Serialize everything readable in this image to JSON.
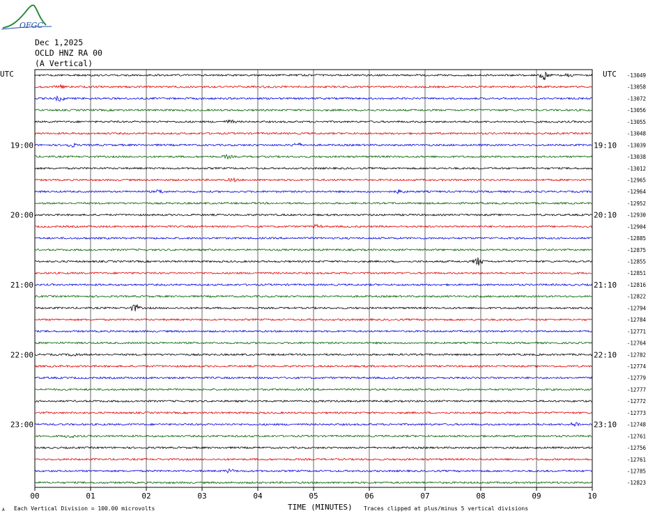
{
  "logo": {
    "text": "OFGC"
  },
  "header": {
    "date": "Dec 1,2025",
    "station": "OCLD HNZ RA 00",
    "component": "(A Vertical)"
  },
  "utc_left": "UTC",
  "utc_right": "UTC",
  "footer": {
    "mark": "A",
    "scale_note": "Each Vertical Division = 100.00 microvolts",
    "clip_note": "Traces clipped at plus/minus 5 vertical divisions"
  },
  "colors": {
    "trace_cycle": [
      "#000000",
      "#e00000",
      "#0000e0",
      "#006000"
    ],
    "grid": "#000000"
  },
  "chart_data": {
    "type": "line",
    "title": "",
    "xlabel": "TIME (MINUTES)",
    "ylabel": "",
    "xlim": [
      0,
      10
    ],
    "x_ticks": [
      "00",
      "01",
      "02",
      "03",
      "04",
      "05",
      "06",
      "07",
      "08",
      "09",
      "10"
    ],
    "traces_per_hour": 6,
    "left_hour_labels": [
      {
        "row": 6,
        "label": "19:00"
      },
      {
        "row": 12,
        "label": "20:00"
      },
      {
        "row": 18,
        "label": "21:00"
      },
      {
        "row": 24,
        "label": "22:00"
      },
      {
        "row": 30,
        "label": "23:00"
      }
    ],
    "right_hour_labels": [
      {
        "row": 6,
        "label": "19:10"
      },
      {
        "row": 12,
        "label": "20:10"
      },
      {
        "row": 18,
        "label": "21:10"
      },
      {
        "row": 24,
        "label": "22:10"
      },
      {
        "row": 30,
        "label": "23:10"
      }
    ],
    "first_offset_label": "-13049",
    "series": [
      {
        "offset": -13049,
        "events": [
          [
            9.15,
            3.0
          ],
          [
            9.55,
            1.2
          ]
        ]
      },
      {
        "offset": -13058,
        "events": [
          [
            0.45,
            1.0
          ]
        ]
      },
      {
        "offset": -13072,
        "events": [
          [
            0.45,
            1.5
          ]
        ]
      },
      {
        "offset": -13056,
        "events": []
      },
      {
        "offset": -13055,
        "events": [
          [
            3.5,
            1.0
          ]
        ]
      },
      {
        "offset": -13048,
        "events": []
      },
      {
        "offset": -13039,
        "events": [
          [
            0.65,
            1.3
          ],
          [
            4.7,
            1.3
          ]
        ]
      },
      {
        "offset": -13038,
        "events": [
          [
            3.45,
            1.0
          ]
        ]
      },
      {
        "offset": -13012,
        "events": []
      },
      {
        "offset": -12965,
        "events": [
          [
            3.55,
            1.0
          ]
        ]
      },
      {
        "offset": -12964,
        "events": [
          [
            2.25,
            1.0
          ],
          [
            6.55,
            1.0
          ]
        ]
      },
      {
        "offset": -12952,
        "events": []
      },
      {
        "offset": -12930,
        "events": []
      },
      {
        "offset": -12904,
        "events": [
          [
            5.05,
            1.0
          ]
        ]
      },
      {
        "offset": -12885,
        "events": []
      },
      {
        "offset": -12875,
        "events": []
      },
      {
        "offset": -12855,
        "events": [
          [
            7.95,
            2.5
          ]
        ]
      },
      {
        "offset": -12851,
        "events": []
      },
      {
        "offset": -12816,
        "events": []
      },
      {
        "offset": -12822,
        "events": []
      },
      {
        "offset": -12794,
        "events": [
          [
            1.8,
            2.2
          ]
        ]
      },
      {
        "offset": -12784,
        "events": []
      },
      {
        "offset": -12771,
        "events": []
      },
      {
        "offset": -12764,
        "events": []
      },
      {
        "offset": -12782,
        "events": [
          [
            0.7,
            1.0
          ]
        ]
      },
      {
        "offset": -12774,
        "events": []
      },
      {
        "offset": -12779,
        "events": []
      },
      {
        "offset": -12777,
        "events": []
      },
      {
        "offset": -12772,
        "events": []
      },
      {
        "offset": -12773,
        "events": []
      },
      {
        "offset": -12748,
        "events": [
          [
            9.7,
            1.5
          ]
        ]
      },
      {
        "offset": -12761,
        "events": [
          [
            0.62,
            1.0
          ]
        ]
      },
      {
        "offset": -12756,
        "events": []
      },
      {
        "offset": -12761,
        "events": []
      },
      {
        "offset": -12785,
        "events": [
          [
            3.5,
            1.0
          ]
        ]
      },
      {
        "offset": -12823,
        "events": []
      }
    ]
  }
}
